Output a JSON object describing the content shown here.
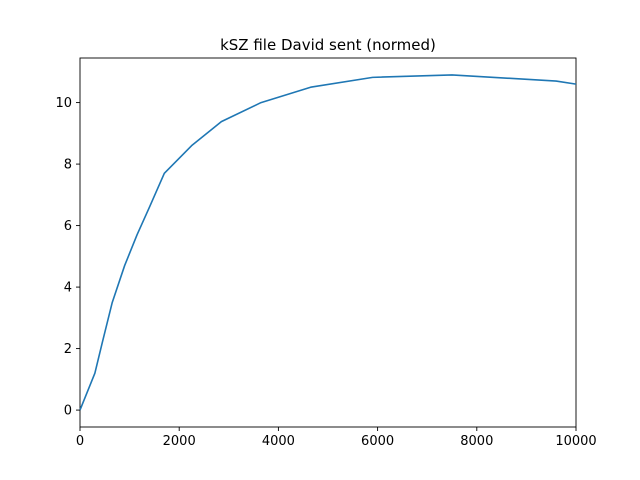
{
  "chart_data": {
    "type": "line",
    "title": "kSZ file David sent (normed)",
    "xlabel": "",
    "ylabel": "",
    "xlim": [
      0,
      10000
    ],
    "ylim": [
      -0.55,
      11.45
    ],
    "xticks": [
      0,
      2000,
      4000,
      6000,
      8000,
      10000
    ],
    "yticks": [
      0,
      2,
      4,
      6,
      8,
      10
    ],
    "grid": false,
    "legend": "none",
    "series": [
      {
        "color": "#1f77b4",
        "x": [
          0,
          300,
          450,
          650,
          900,
          1150,
          1400,
          1700,
          2250,
          2850,
          3650,
          4650,
          5900,
          7500,
          9600,
          10000
        ],
        "y": [
          0.0,
          1.2,
          2.2,
          3.5,
          4.7,
          5.7,
          6.6,
          7.7,
          8.6,
          9.38,
          10.0,
          10.5,
          10.82,
          10.9,
          10.7,
          10.6
        ]
      }
    ]
  }
}
